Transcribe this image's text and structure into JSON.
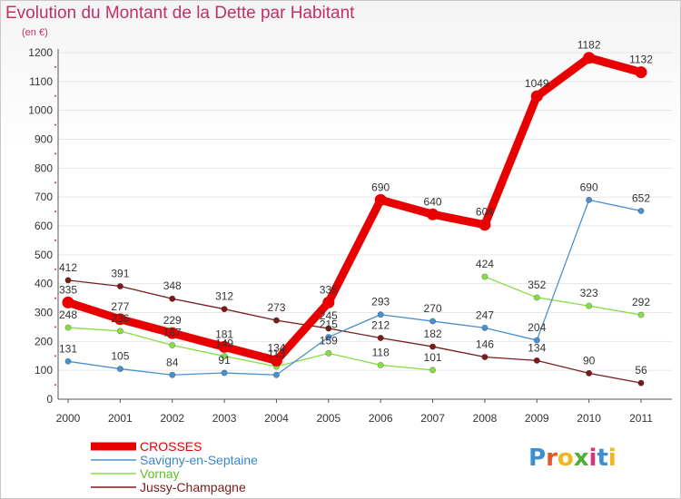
{
  "title": "Evolution du Montant de la Dette par Habitant",
  "subtitle": "(en €)",
  "logo": {
    "text": "Proxiti",
    "letters": [
      "P",
      "r",
      "o",
      "x",
      "i",
      "t",
      "i"
    ],
    "colors": [
      "#3d8fd0",
      "#e8552a",
      "#f2b51a",
      "#4caf3a",
      "#d9357a",
      "#3d8fd0",
      "#f2b51a"
    ]
  },
  "chart_data": {
    "type": "line",
    "title": "Evolution du Montant de la Dette par Habitant",
    "ylabel": "(en €)",
    "xlabel": "",
    "x": [
      "2000",
      "2001",
      "2002",
      "2003",
      "2004",
      "2005",
      "2006",
      "2007",
      "2008",
      "2009",
      "2010",
      "2011"
    ],
    "ylim": [
      0,
      1200
    ],
    "yticks": [
      0,
      100,
      200,
      300,
      400,
      500,
      600,
      700,
      800,
      900,
      1000,
      1100,
      1200
    ],
    "legend_position": "bottom-left",
    "series": [
      {
        "name": "CROSSES",
        "color": "#e80000",
        "values": [
          335,
          277,
          229,
          181,
          134,
          335,
          690,
          640,
          604,
          1049,
          1182,
          1132
        ]
      },
      {
        "name": "Savigny-en-Septaine",
        "color": "#4a90d0",
        "values": [
          131,
          105,
          84,
          91,
          84,
          215,
          293,
          270,
          247,
          204,
          690,
          652
        ],
        "labels": [
          "131",
          "105",
          "84",
          "91",
          "",
          "215",
          "293",
          "270",
          "247",
          "204",
          "690",
          "652"
        ]
      },
      {
        "name": "Vornay",
        "color": "#88dd44",
        "values": [
          248,
          236,
          187,
          149,
          113,
          159,
          118,
          101,
          424,
          352,
          323,
          292
        ],
        "labels": [
          "248",
          "236",
          "187",
          "149",
          "113",
          "159",
          "118",
          "101",
          "424",
          "352",
          "323",
          "292"
        ],
        "gap_after_index": 7
      },
      {
        "name": "Jussy-Champagne",
        "color": "#7a1a1a",
        "values": [
          412,
          391,
          348,
          312,
          273,
          245,
          212,
          182,
          146,
          134,
          90,
          56
        ]
      }
    ]
  }
}
